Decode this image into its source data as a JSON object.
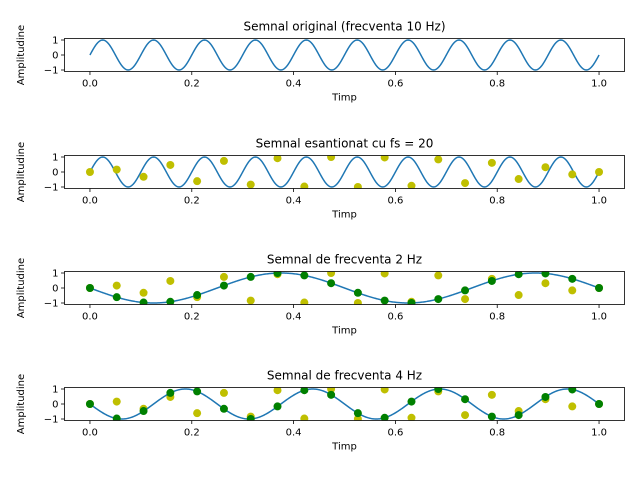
{
  "chart_data": [
    {
      "type": "line",
      "title": "Semnal original (frecventa 10 Hz)",
      "xlabel": "Timp",
      "ylabel": "Amplitudine",
      "xlim": [
        -0.05,
        1.05
      ],
      "ylim": [
        -1.1,
        1.1
      ],
      "xticks": [
        "0.0",
        "0.2",
        "0.4",
        "0.6",
        "0.8",
        "1.0"
      ],
      "yticks": [
        "1",
        "0",
        "−1"
      ],
      "grid": false,
      "series": [
        {
          "function": "sin(2*pi*10*t)",
          "t_range": [
            0,
            1
          ],
          "color": "#1f77b4"
        }
      ]
    },
    {
      "type": "line",
      "title": "Semnal esantionat cu fs = 20",
      "xlabel": "Timp",
      "ylabel": "Amplitudine",
      "xlim": [
        -0.05,
        1.05
      ],
      "ylim": [
        -1.1,
        1.1
      ],
      "xticks": [
        "0.0",
        "0.2",
        "0.4",
        "0.6",
        "0.8",
        "1.0"
      ],
      "yticks": [
        "1",
        "0",
        "−1"
      ],
      "grid": false,
      "series": [
        {
          "function": "sin(2*pi*10*t)",
          "t_range": [
            0,
            1
          ],
          "color": "#1f77b4"
        },
        {
          "type": "scatter",
          "color": "#bfbf00",
          "x": [
            0.0,
            0.0526,
            0.1053,
            0.1579,
            0.2105,
            0.2632,
            0.3158,
            0.3684,
            0.4211,
            0.4737,
            0.5263,
            0.5789,
            0.6316,
            0.6842,
            0.7368,
            0.7895,
            0.8421,
            0.8947,
            0.9474,
            1.0
          ],
          "y": [
            0.0,
            0.16,
            -0.32,
            0.47,
            -0.61,
            0.74,
            -0.84,
            0.92,
            -0.97,
            1.0,
            -1.0,
            0.97,
            -0.92,
            0.84,
            -0.74,
            0.61,
            -0.47,
            0.32,
            -0.16,
            0.0
          ]
        }
      ]
    },
    {
      "type": "line",
      "title": "Semnal de frecventa 2 Hz",
      "xlabel": "Timp",
      "ylabel": "Amplitudine",
      "xlim": [
        -0.05,
        1.05
      ],
      "ylim": [
        -1.1,
        1.1
      ],
      "xticks": [
        "0.0",
        "0.2",
        "0.4",
        "0.6",
        "0.8",
        "1.0"
      ],
      "yticks": [
        "1",
        "0",
        "−1"
      ],
      "grid": false,
      "series": [
        {
          "function": "sin(2*pi*10*t) sampled",
          "type": "scatter",
          "color": "#bfbf00",
          "x": [
            0.0,
            0.0526,
            0.1053,
            0.1579,
            0.2105,
            0.2632,
            0.3158,
            0.3684,
            0.4211,
            0.4737,
            0.5263,
            0.5789,
            0.6316,
            0.6842,
            0.7368,
            0.7895,
            0.8421,
            0.8947,
            0.9474,
            1.0
          ],
          "y": [
            0.0,
            0.16,
            -0.32,
            0.47,
            -0.61,
            0.74,
            -0.84,
            0.92,
            -0.97,
            1.0,
            -1.0,
            0.97,
            -0.92,
            0.84,
            -0.74,
            0.61,
            -0.47,
            0.32,
            -0.16,
            0.0
          ]
        },
        {
          "function": "-sin(2*pi*2*t)",
          "t_range": [
            0,
            1
          ],
          "color": "#1f77b4"
        },
        {
          "type": "scatter",
          "color": "#008000",
          "x": [
            0.0,
            0.0526,
            0.1053,
            0.1579,
            0.2105,
            0.2632,
            0.3158,
            0.3684,
            0.4211,
            0.4737,
            0.5263,
            0.5789,
            0.6316,
            0.6842,
            0.7368,
            0.7895,
            0.8421,
            0.8947,
            0.9474,
            1.0
          ],
          "y": [
            0.0,
            -0.61,
            -0.97,
            -0.92,
            -0.47,
            0.16,
            0.74,
            1.0,
            0.84,
            0.32,
            -0.32,
            -0.84,
            -1.0,
            -0.74,
            -0.16,
            0.47,
            0.92,
            0.97,
            0.61,
            0.0
          ]
        }
      ]
    },
    {
      "type": "line",
      "title": "Semnal de frecventa 4 Hz",
      "xlabel": "Timp",
      "ylabel": "Amplitudine",
      "xlim": [
        -0.05,
        1.05
      ],
      "ylim": [
        -1.1,
        1.1
      ],
      "xticks": [
        "0.0",
        "0.2",
        "0.4",
        "0.6",
        "0.8",
        "1.0"
      ],
      "yticks": [
        "1",
        "0",
        "−1"
      ],
      "grid": false,
      "series": [
        {
          "function": "sin(2*pi*10*t) sampled",
          "type": "scatter",
          "color": "#bfbf00",
          "x": [
            0.0,
            0.0526,
            0.1053,
            0.1579,
            0.2105,
            0.2632,
            0.3158,
            0.3684,
            0.4211,
            0.4737,
            0.5263,
            0.5789,
            0.6316,
            0.6842,
            0.7368,
            0.7895,
            0.8421,
            0.8947,
            0.9474,
            1.0
          ],
          "y": [
            0.0,
            0.16,
            -0.32,
            0.47,
            -0.61,
            0.74,
            -0.84,
            0.92,
            -0.97,
            1.0,
            -1.0,
            0.97,
            -0.92,
            0.84,
            -0.74,
            0.61,
            -0.47,
            0.32,
            -0.16,
            0.0
          ]
        },
        {
          "function": "-sin(2*pi*4*t)",
          "t_range": [
            0,
            1
          ],
          "color": "#1f77b4"
        },
        {
          "type": "scatter",
          "color": "#008000",
          "x": [
            0.0,
            0.0526,
            0.1053,
            0.1579,
            0.2105,
            0.2632,
            0.3158,
            0.3684,
            0.4211,
            0.4737,
            0.5263,
            0.5789,
            0.6316,
            0.6842,
            0.7368,
            0.7895,
            0.8421,
            0.8947,
            0.9474,
            1.0
          ],
          "y": [
            0.0,
            -0.97,
            -0.47,
            0.74,
            0.84,
            -0.32,
            -1.0,
            -0.16,
            0.92,
            0.61,
            -0.61,
            -0.92,
            0.16,
            1.0,
            0.32,
            -0.84,
            -0.74,
            0.47,
            0.97,
            0.0
          ]
        }
      ]
    }
  ]
}
